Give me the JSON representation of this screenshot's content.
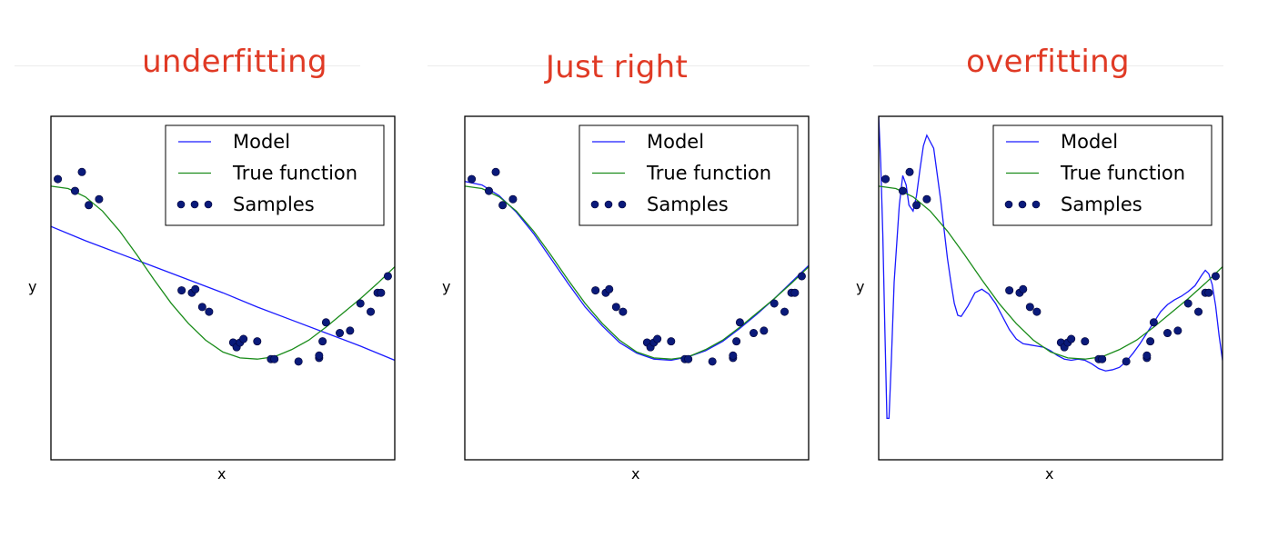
{
  "chart_data": [
    {
      "type": "line",
      "title": "underfitting",
      "xlabel": "x",
      "ylabel": "y",
      "xlim": [
        0,
        1
      ],
      "ylim": [
        -1.6,
        1.3
      ],
      "legend": {
        "placement": "top-right",
        "entries": [
          {
            "label": "Model",
            "kind": "line",
            "color": "#1a1aff"
          },
          {
            "label": "True function",
            "kind": "line",
            "color": "#1a8c1a"
          },
          {
            "label": "Samples",
            "kind": "markers",
            "color": "#0a1a7a"
          }
        ]
      },
      "series": [
        {
          "name": "Model",
          "color": "#1a1aff",
          "x": [
            0,
            0.1,
            0.2,
            0.3,
            0.4,
            0.5,
            0.6,
            0.7,
            0.8,
            0.9,
            1.0
          ],
          "y": [
            0.37,
            0.25,
            0.14,
            0.03,
            -0.08,
            -0.19,
            -0.31,
            -0.42,
            -0.53,
            -0.64,
            -0.76
          ]
        },
        {
          "name": "True function",
          "color": "#1a8c1a",
          "x": [
            0,
            0.05,
            0.1,
            0.15,
            0.2,
            0.25,
            0.3,
            0.35,
            0.4,
            0.45,
            0.5,
            0.55,
            0.6,
            0.65,
            0.7,
            0.75,
            0.8,
            0.85,
            0.9,
            0.95,
            1.0
          ],
          "y": [
            0.71,
            0.69,
            0.62,
            0.5,
            0.33,
            0.13,
            -0.08,
            -0.28,
            -0.45,
            -0.59,
            -0.69,
            -0.74,
            -0.75,
            -0.73,
            -0.67,
            -0.59,
            -0.48,
            -0.36,
            -0.24,
            -0.11,
            0.03
          ]
        }
      ],
      "samples": {
        "name": "Samples",
        "color": "#0a1a7a",
        "x": [
          0.02,
          0.07,
          0.09,
          0.11,
          0.14,
          0.38,
          0.41,
          0.42,
          0.44,
          0.46,
          0.53,
          0.54,
          0.55,
          0.56,
          0.6,
          0.64,
          0.65,
          0.72,
          0.78,
          0.78,
          0.79,
          0.8,
          0.84,
          0.87,
          0.9,
          0.93,
          0.95,
          0.96,
          0.98
        ],
        "y": [
          0.77,
          0.67,
          0.83,
          0.55,
          0.6,
          -0.17,
          -0.19,
          -0.16,
          -0.31,
          -0.35,
          -0.61,
          -0.65,
          -0.61,
          -0.58,
          -0.6,
          -0.75,
          -0.75,
          -0.77,
          -0.74,
          -0.72,
          -0.6,
          -0.44,
          -0.53,
          -0.51,
          -0.28,
          -0.35,
          -0.19,
          -0.19,
          -0.05
        ]
      }
    },
    {
      "type": "line",
      "title": "Just right",
      "xlabel": "x",
      "ylabel": "y",
      "xlim": [
        0,
        1
      ],
      "ylim": [
        -1.6,
        1.3
      ],
      "legend": {
        "placement": "top-right",
        "entries": [
          {
            "label": "Model",
            "kind": "line",
            "color": "#1a1aff"
          },
          {
            "label": "True function",
            "kind": "line",
            "color": "#1a8c1a"
          },
          {
            "label": "Samples",
            "kind": "markers",
            "color": "#0a1a7a"
          }
        ]
      },
      "series": [
        {
          "name": "Model",
          "color": "#1a1aff",
          "x": [
            0,
            0.05,
            0.1,
            0.15,
            0.2,
            0.25,
            0.3,
            0.35,
            0.4,
            0.45,
            0.5,
            0.55,
            0.6,
            0.65,
            0.7,
            0.75,
            0.8,
            0.85,
            0.9,
            0.95,
            1.0
          ],
          "y": [
            0.75,
            0.72,
            0.63,
            0.49,
            0.31,
            0.1,
            -0.11,
            -0.31,
            -0.47,
            -0.61,
            -0.7,
            -0.75,
            -0.76,
            -0.73,
            -0.68,
            -0.6,
            -0.49,
            -0.37,
            -0.24,
            -0.1,
            0.04
          ]
        },
        {
          "name": "True function",
          "color": "#1a8c1a",
          "x": [
            0,
            0.05,
            0.1,
            0.15,
            0.2,
            0.25,
            0.3,
            0.35,
            0.4,
            0.45,
            0.5,
            0.55,
            0.6,
            0.65,
            0.7,
            0.75,
            0.8,
            0.85,
            0.9,
            0.95,
            1.0
          ],
          "y": [
            0.71,
            0.69,
            0.62,
            0.5,
            0.33,
            0.13,
            -0.08,
            -0.28,
            -0.45,
            -0.59,
            -0.69,
            -0.74,
            -0.75,
            -0.73,
            -0.67,
            -0.59,
            -0.48,
            -0.36,
            -0.24,
            -0.11,
            0.03
          ]
        }
      ],
      "samples": {
        "name": "Samples",
        "color": "#0a1a7a",
        "x": [
          0.02,
          0.07,
          0.09,
          0.11,
          0.14,
          0.38,
          0.41,
          0.42,
          0.44,
          0.46,
          0.53,
          0.54,
          0.55,
          0.56,
          0.6,
          0.64,
          0.65,
          0.72,
          0.78,
          0.78,
          0.79,
          0.8,
          0.84,
          0.87,
          0.9,
          0.93,
          0.95,
          0.96,
          0.98
        ],
        "y": [
          0.77,
          0.67,
          0.83,
          0.55,
          0.6,
          -0.17,
          -0.19,
          -0.16,
          -0.31,
          -0.35,
          -0.61,
          -0.65,
          -0.61,
          -0.58,
          -0.6,
          -0.75,
          -0.75,
          -0.77,
          -0.74,
          -0.72,
          -0.6,
          -0.44,
          -0.53,
          -0.51,
          -0.28,
          -0.35,
          -0.19,
          -0.19,
          -0.05
        ]
      }
    },
    {
      "type": "line",
      "title": "overfitting",
      "xlabel": "x",
      "ylabel": "y",
      "xlim": [
        0,
        1
      ],
      "ylim": [
        -1.6,
        1.3
      ],
      "legend": {
        "placement": "top-right",
        "entries": [
          {
            "label": "Model",
            "kind": "line",
            "color": "#1a1aff"
          },
          {
            "label": "True function",
            "kind": "line",
            "color": "#1a8c1a"
          },
          {
            "label": "Samples",
            "kind": "markers",
            "color": "#0a1a7a"
          }
        ]
      },
      "series": [
        {
          "name": "Model",
          "color": "#1a1aff",
          "x": [
            0.0,
            0.006,
            0.012,
            0.018,
            0.024,
            0.03,
            0.037,
            0.045,
            0.06,
            0.07,
            0.08,
            0.088,
            0.1,
            0.11,
            0.12,
            0.13,
            0.14,
            0.16,
            0.18,
            0.2,
            0.21,
            0.22,
            0.23,
            0.24,
            0.26,
            0.28,
            0.3,
            0.32,
            0.34,
            0.36,
            0.38,
            0.4,
            0.42,
            0.44,
            0.46,
            0.48,
            0.5,
            0.52,
            0.54,
            0.56,
            0.58,
            0.6,
            0.62,
            0.64,
            0.66,
            0.68,
            0.7,
            0.72,
            0.74,
            0.76,
            0.78,
            0.8,
            0.82,
            0.84,
            0.86,
            0.88,
            0.9,
            0.92,
            0.94,
            0.95,
            0.96,
            0.97,
            0.98,
            0.99,
            1.0
          ],
          "y": [
            1.3,
            0.9,
            0.3,
            -0.5,
            -1.25,
            -1.25,
            -0.75,
            -0.1,
            0.55,
            0.8,
            0.72,
            0.55,
            0.5,
            0.63,
            0.85,
            1.05,
            1.14,
            1.03,
            0.6,
            0.1,
            -0.1,
            -0.28,
            -0.38,
            -0.39,
            -0.3,
            -0.19,
            -0.16,
            -0.2,
            -0.28,
            -0.39,
            -0.5,
            -0.58,
            -0.62,
            -0.63,
            -0.64,
            -0.65,
            -0.68,
            -0.72,
            -0.75,
            -0.76,
            -0.75,
            -0.76,
            -0.79,
            -0.83,
            -0.85,
            -0.84,
            -0.82,
            -0.77,
            -0.7,
            -0.62,
            -0.53,
            -0.44,
            -0.35,
            -0.29,
            -0.25,
            -0.22,
            -0.18,
            -0.13,
            -0.04,
            0.0,
            -0.03,
            -0.12,
            -0.3,
            -0.55,
            -0.76
          ]
        },
        {
          "name": "True function",
          "color": "#1a8c1a",
          "x": [
            0,
            0.05,
            0.1,
            0.15,
            0.2,
            0.25,
            0.3,
            0.35,
            0.4,
            0.45,
            0.5,
            0.55,
            0.6,
            0.65,
            0.7,
            0.75,
            0.8,
            0.85,
            0.9,
            0.95,
            1.0
          ],
          "y": [
            0.71,
            0.69,
            0.62,
            0.5,
            0.33,
            0.13,
            -0.08,
            -0.28,
            -0.45,
            -0.59,
            -0.69,
            -0.74,
            -0.75,
            -0.73,
            -0.67,
            -0.59,
            -0.48,
            -0.36,
            -0.24,
            -0.11,
            0.03
          ]
        }
      ],
      "samples": {
        "name": "Samples",
        "color": "#0a1a7a",
        "x": [
          0.02,
          0.07,
          0.09,
          0.11,
          0.14,
          0.38,
          0.41,
          0.42,
          0.44,
          0.46,
          0.53,
          0.54,
          0.55,
          0.56,
          0.6,
          0.64,
          0.65,
          0.72,
          0.78,
          0.78,
          0.79,
          0.8,
          0.84,
          0.87,
          0.9,
          0.93,
          0.95,
          0.96,
          0.98
        ],
        "y": [
          0.77,
          0.67,
          0.83,
          0.55,
          0.6,
          -0.17,
          -0.19,
          -0.16,
          -0.31,
          -0.35,
          -0.61,
          -0.65,
          -0.61,
          -0.58,
          -0.6,
          -0.75,
          -0.75,
          -0.77,
          -0.74,
          -0.72,
          -0.6,
          -0.44,
          -0.53,
          -0.51,
          -0.28,
          -0.35,
          -0.19,
          -0.19,
          -0.05
        ]
      }
    }
  ]
}
